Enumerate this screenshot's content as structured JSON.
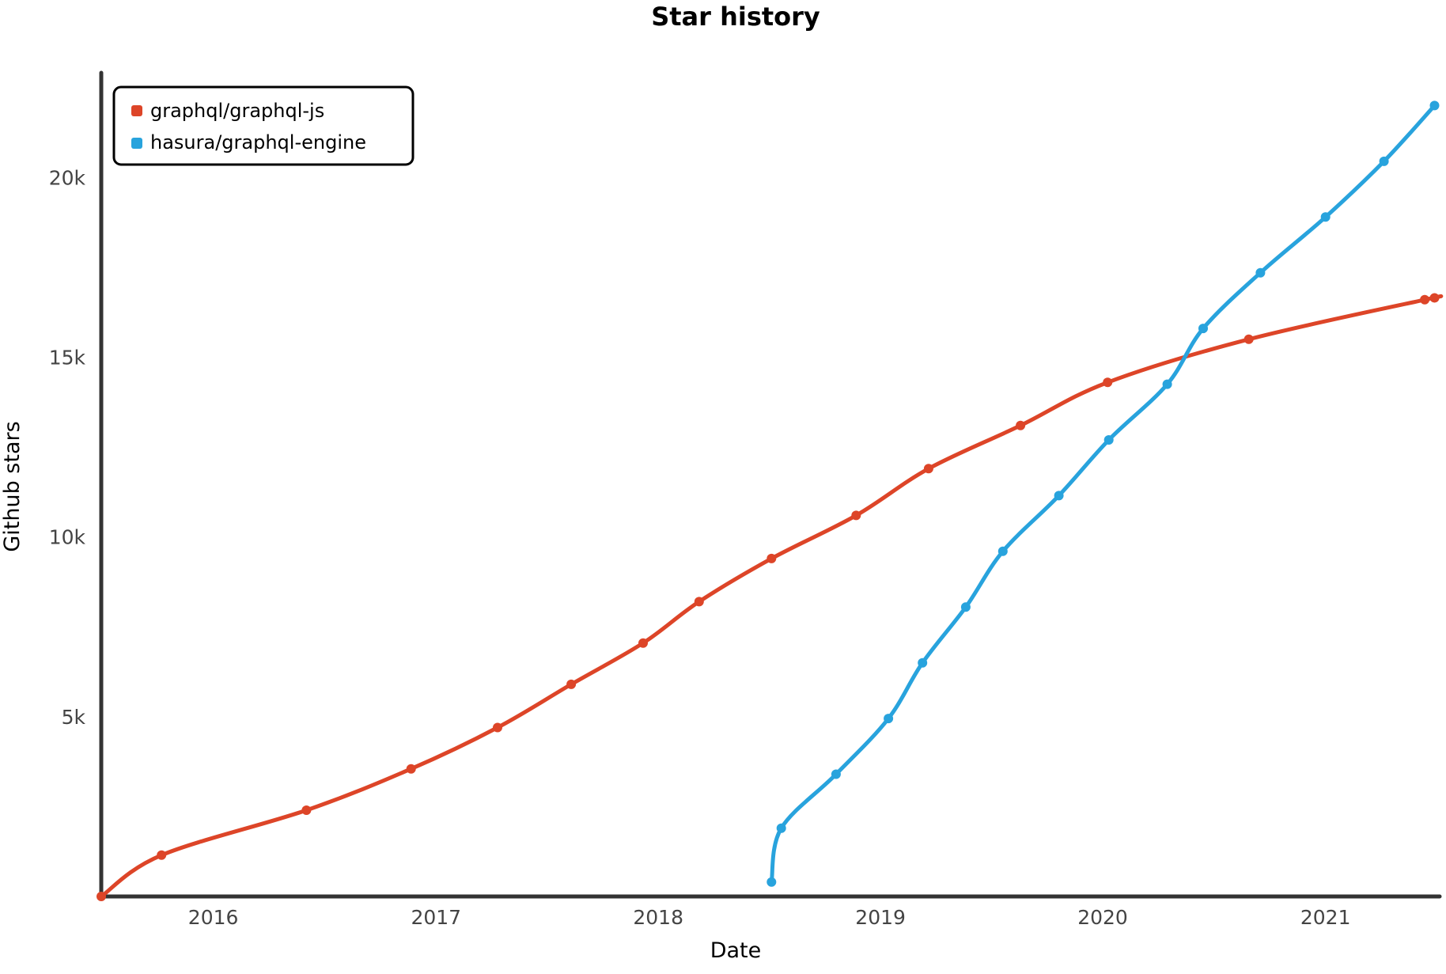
{
  "chart_data": {
    "type": "line",
    "title": "Star history",
    "xlabel": "Date",
    "ylabel": "Github stars",
    "xlim": [
      "2015-07-01",
      "2021-07-01"
    ],
    "ylim": [
      0,
      23000
    ],
    "x_ticks": [
      "2016",
      "2017",
      "2018",
      "2019",
      "2020",
      "2021"
    ],
    "y_ticks": [
      "5k",
      "10k",
      "15k",
      "20k"
    ],
    "legend_position": "top-left",
    "grid": false,
    "series": [
      {
        "name": "graphql/graphql-js",
        "color": "#dd4528",
        "points": [
          [
            "2015-07-01",
            0
          ],
          [
            "2015-10-08",
            1150
          ],
          [
            "2016-06-02",
            2400
          ],
          [
            "2016-11-21",
            3550
          ],
          [
            "2017-04-12",
            4700
          ],
          [
            "2017-08-11",
            5900
          ],
          [
            "2017-12-07",
            7050
          ],
          [
            "2018-03-09",
            8200
          ],
          [
            "2018-07-06",
            9400
          ],
          [
            "2018-11-22",
            10600
          ],
          [
            "2019-03-21",
            11900
          ],
          [
            "2019-08-19",
            13100
          ],
          [
            "2020-01-09",
            14300
          ],
          [
            "2020-08-28",
            15500
          ],
          [
            "2021-06-13",
            16600
          ],
          [
            "2021-06-29",
            16650
          ]
        ]
      },
      {
        "name": "hasura/graphql-engine",
        "color": "#28a3dd",
        "points": [
          [
            "2018-07-06",
            400
          ],
          [
            "2018-07-22",
            1900
          ],
          [
            "2018-10-20",
            3400
          ],
          [
            "2019-01-14",
            4950
          ],
          [
            "2019-03-11",
            6500
          ],
          [
            "2019-05-21",
            8050
          ],
          [
            "2019-07-21",
            9600
          ],
          [
            "2019-10-21",
            11150
          ],
          [
            "2020-01-11",
            12700
          ],
          [
            "2020-04-16",
            14250
          ],
          [
            "2020-06-14",
            15800
          ],
          [
            "2020-09-16",
            17350
          ],
          [
            "2021-01-01",
            18900
          ],
          [
            "2021-04-07",
            20450
          ],
          [
            "2021-06-29",
            22000
          ]
        ]
      }
    ]
  }
}
